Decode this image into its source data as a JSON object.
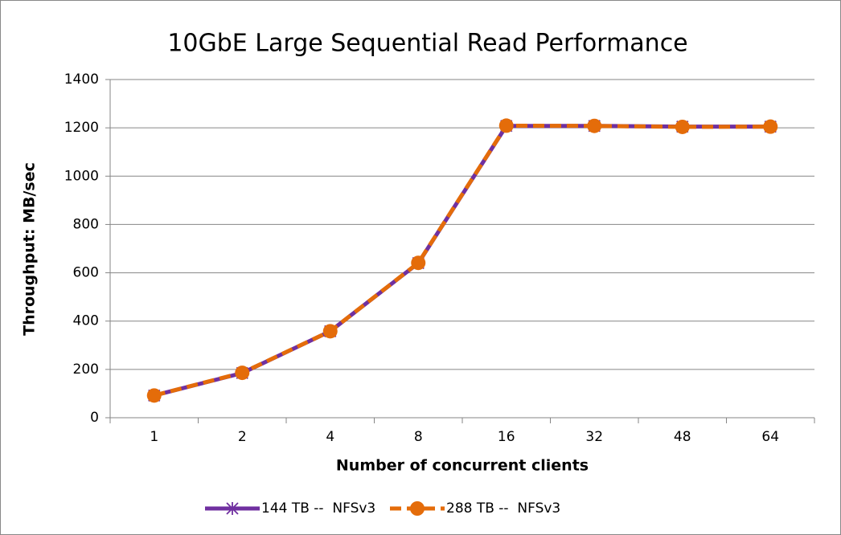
{
  "chart_data": {
    "type": "line",
    "title": "10GbE Large Sequential Read Performance",
    "xlabel": "Number of concurrent clients",
    "ylabel": "Throughput: MB/sec",
    "categories": [
      "1",
      "2",
      "4",
      "8",
      "16",
      "32",
      "48",
      "64"
    ],
    "series": [
      {
        "name": "144 TB --  NFSv3",
        "color": "#7030a0",
        "marker": "star",
        "dash": false,
        "values": [
          92,
          185,
          358,
          640,
          1208,
          1208,
          1205,
          1205
        ]
      },
      {
        "name": "288 TB --  NFSv3",
        "color": "#e46c0a",
        "marker": "circle",
        "dash": true,
        "values": [
          92,
          186,
          358,
          641,
          1209,
          1208,
          1204,
          1205
        ]
      }
    ],
    "ylim": [
      0,
      1400
    ],
    "yticks": [
      0,
      200,
      400,
      600,
      800,
      1000,
      1200,
      1400
    ],
    "grid": true,
    "legend": "bottom"
  }
}
